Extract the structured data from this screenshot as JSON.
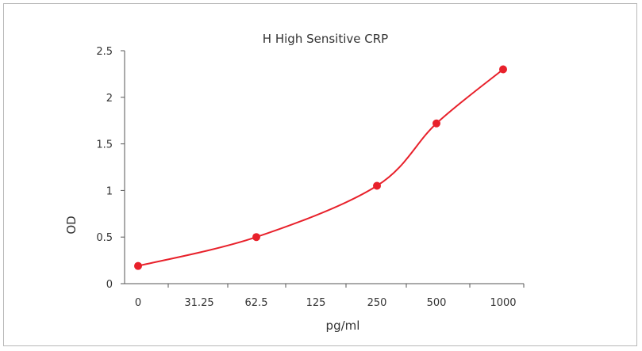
{
  "chart_data": {
    "type": "line",
    "title": "H High Sensitive  CRP",
    "xlabel": "pg/ml",
    "ylabel": "OD",
    "x_ticks": [
      "0",
      "31.25",
      "62.5",
      "125",
      "250",
      "500",
      "1000"
    ],
    "y_ticks": [
      "0",
      "0.5",
      "1",
      "1.5",
      "2",
      "2.5"
    ],
    "ylim": [
      0,
      2.5
    ],
    "grid": false,
    "series": [
      {
        "x": [
          0,
          62.5,
          250,
          500,
          1000
        ],
        "y": [
          0.19,
          0.5,
          1.05,
          1.72,
          2.3
        ],
        "color": "#e8212b"
      }
    ]
  }
}
